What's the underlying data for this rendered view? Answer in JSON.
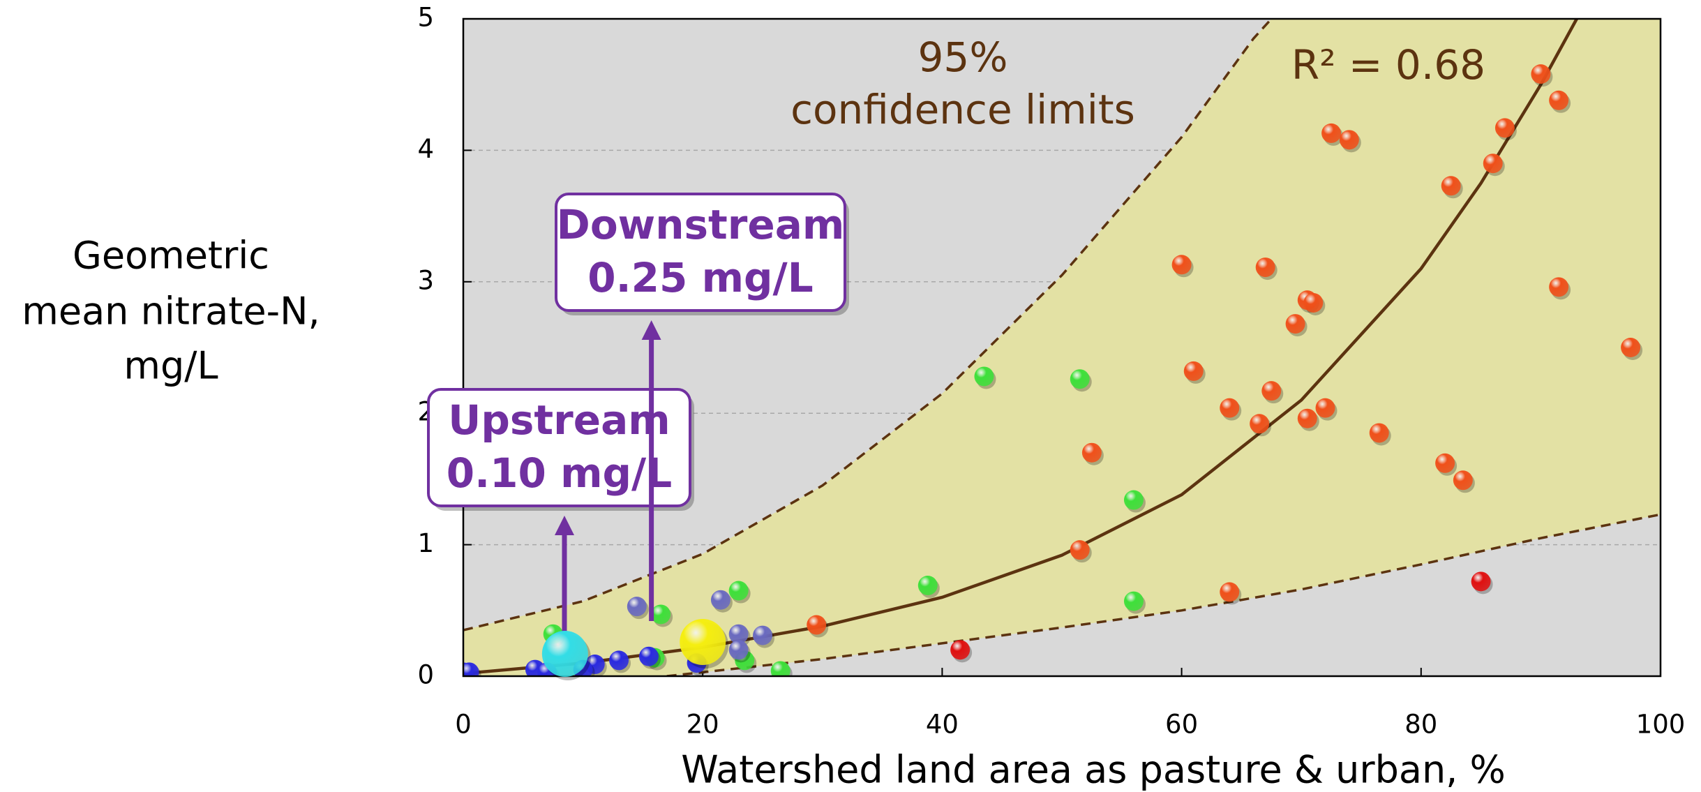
{
  "chart_data": {
    "type": "scatter",
    "xlabel": "Watershed land area as pasture & urban, %",
    "ylabel": [
      "Geometric",
      "mean nitrate-N,",
      "mg/L"
    ],
    "xlim": [
      0,
      100
    ],
    "ylim": [
      0,
      5
    ],
    "xticks": [
      0,
      20,
      40,
      60,
      80,
      100
    ],
    "yticks": [
      0,
      1,
      2,
      3,
      4,
      5
    ],
    "grid": true,
    "background": "#d9d9d9",
    "band_color": "#e3e1a4",
    "line_color": "#5c3310",
    "annotations": [
      "95%",
      "confidence limits",
      "R² = 0.68"
    ],
    "series": [
      {
        "color": "#f0501a",
        "x": [
          90,
          91.5,
          72.5,
          74,
          87,
          86,
          82.5,
          60,
          67,
          70.5,
          71,
          91.5,
          97.5,
          69.5,
          61,
          64,
          66.5,
          67.5,
          70.5,
          72,
          76.5,
          82,
          83.5,
          52.5,
          51.5,
          64,
          29.5
        ],
        "y": [
          4.58,
          4.38,
          4.13,
          4.08,
          4.17,
          3.9,
          3.73,
          3.13,
          3.11,
          2.86,
          2.84,
          2.96,
          2.5,
          2.68,
          2.32,
          2.04,
          1.92,
          2.17,
          1.96,
          2.04,
          1.85,
          1.62,
          1.49,
          1.7,
          0.96,
          0.64,
          0.39
        ]
      },
      {
        "color": "#e01010",
        "x": [
          41.5,
          85
        ],
        "y": [
          0.2,
          0.72
        ]
      },
      {
        "color": "#3ee03a",
        "x": [
          43.5,
          51.5,
          56,
          38.8,
          56,
          23,
          16.5,
          7.5,
          26.5,
          23.5,
          16
        ],
        "y": [
          2.28,
          2.26,
          1.34,
          0.69,
          0.57,
          0.65,
          0.47,
          0.32,
          0.04,
          0.12,
          0.14
        ]
      },
      {
        "color": "#6a6ac0",
        "x": [
          14.5,
          21.5,
          23,
          25,
          23
        ],
        "y": [
          0.53,
          0.58,
          0.32,
          0.31,
          0.2
        ]
      },
      {
        "color": "#2a2ae0",
        "x": [
          15.5,
          13,
          11,
          0,
          0.5,
          6,
          10,
          7,
          19.5
        ],
        "y": [
          0.15,
          0.12,
          0.09,
          0.03,
          0.03,
          0.05,
          0.05,
          0.03,
          0.1
        ]
      }
    ],
    "fit": {
      "x": [
        0,
        10,
        20,
        30,
        40,
        50,
        60,
        70,
        80,
        85,
        90,
        93
      ],
      "y": [
        0.02,
        0.1,
        0.22,
        0.38,
        0.6,
        0.92,
        1.38,
        2.1,
        3.1,
        3.75,
        4.5,
        5.0
      ]
    },
    "upper": {
      "x": [
        0,
        10,
        20,
        30,
        40,
        50,
        60,
        66,
        67.5
      ],
      "y": [
        0.35,
        0.57,
        0.93,
        1.45,
        2.15,
        3.05,
        4.1,
        4.85,
        5.0
      ]
    },
    "lower": {
      "x": [
        17,
        20,
        30,
        40,
        50,
        60,
        70,
        80,
        90,
        100
      ],
      "y": [
        0,
        0.03,
        0.13,
        0.25,
        0.37,
        0.5,
        0.66,
        0.85,
        1.05,
        1.23
      ]
    },
    "callouts": [
      {
        "lines": [
          "Upstream",
          "0.10 mg/L"
        ],
        "color": "#33dde6",
        "x": 8.5,
        "y": 0.17
      },
      {
        "lines": [
          "Downstream",
          "0.25 mg/L"
        ],
        "color": "#f5ee10",
        "x": 20,
        "y": 0.26
      }
    ]
  }
}
